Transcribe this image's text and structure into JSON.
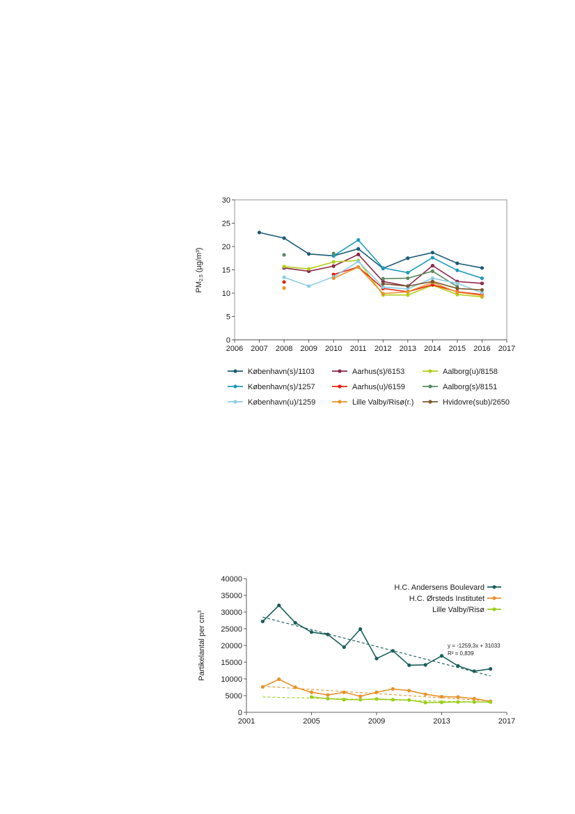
{
  "chart_data": [
    {
      "type": "line",
      "title": "",
      "xlabel": "",
      "ylabel": "PM",
      "ylabel_sub": "2.5",
      "ylabel_unit": "(µg/m³)",
      "xlim": [
        2006,
        2017
      ],
      "ylim": [
        0,
        30
      ],
      "xticks": [
        "2006",
        "2007",
        "2008",
        "2009",
        "2010",
        "2011",
        "2012",
        "2013",
        "2014",
        "2015",
        "2016",
        "2017"
      ],
      "yticks": [
        "0",
        "5",
        "10",
        "15",
        "20",
        "25",
        "30"
      ],
      "grid": false,
      "legend_position": "bottom",
      "series": [
        {
          "name": "København(s)/1103",
          "color": "#1a5a78",
          "points": [
            [
              2007,
              23.0
            ],
            [
              2008,
              21.8
            ],
            [
              2009,
              18.4
            ],
            [
              2010,
              18.0
            ],
            [
              2011,
              19.5
            ],
            [
              2012,
              15.3
            ],
            [
              2013,
              17.5
            ],
            [
              2014,
              18.7
            ],
            [
              2015,
              16.4
            ],
            [
              2016,
              15.4
            ]
          ]
        },
        {
          "name": "Aarhus(s)/6153",
          "color": "#8c2646",
          "points": [
            [
              2008,
              15.4
            ],
            [
              2009,
              14.7
            ],
            [
              2010,
              15.8
            ],
            [
              2011,
              18.3
            ],
            [
              2012,
              12.5
            ],
            [
              2013,
              11.5
            ],
            [
              2014,
              15.9
            ],
            [
              2015,
              12.5
            ],
            [
              2016,
              12.1
            ]
          ]
        },
        {
          "name": "Aalborg(u)/8158",
          "color": "#b5cc18",
          "points": [
            [
              2008,
              15.7
            ],
            [
              2009,
              15.2
            ],
            [
              2010,
              16.7
            ],
            [
              2011,
              17.0
            ],
            [
              2012,
              9.6
            ],
            [
              2013,
              9.6
            ],
            [
              2014,
              11.7
            ],
            [
              2015,
              9.7
            ],
            [
              2016,
              9.2
            ]
          ]
        },
        {
          "name": "København(s)/1257",
          "color": "#1e9ab8",
          "points": [
            [
              2010,
              18.0
            ],
            [
              2011,
              21.4
            ],
            [
              2012,
              15.4
            ],
            [
              2013,
              14.4
            ],
            [
              2014,
              17.6
            ],
            [
              2015,
              14.9
            ],
            [
              2016,
              13.2
            ]
          ]
        },
        {
          "name": "Aarhus(u)/6159",
          "color": "#e82010",
          "points": [
            [
              2008,
              12.4
            ],
            [
              2010,
              14.0
            ],
            [
              2011,
              15.6
            ],
            [
              2012,
              11.0
            ],
            [
              2013,
              10.3
            ],
            [
              2014,
              11.8
            ],
            [
              2015,
              10.3
            ],
            [
              2016,
              9.7
            ]
          ]
        },
        {
          "name": "Aalborg(s)/8151",
          "color": "#5a8a5e",
          "points": [
            [
              2008,
              18.2
            ],
            [
              2010,
              18.5
            ],
            [
              2012,
              13.1
            ],
            [
              2013,
              13.2
            ],
            [
              2014,
              14.7
            ],
            [
              2015,
              11.4
            ]
          ]
        },
        {
          "name": "København(u)/1259",
          "color": "#8ccce4",
          "points": [
            [
              2008,
              13.4
            ],
            [
              2009,
              11.5
            ],
            [
              2010,
              13.5
            ],
            [
              2011,
              16.8
            ],
            [
              2012,
              11.3
            ],
            [
              2013,
              10.9
            ],
            [
              2014,
              13.2
            ],
            [
              2015,
              12.1
            ],
            [
              2016,
              10.1
            ]
          ]
        },
        {
          "name": "Lille Valby/Risø(r.)",
          "color": "#e8922a",
          "points": [
            [
              2008,
              11.1
            ],
            [
              2010,
              13.2
            ],
            [
              2011,
              15.6
            ],
            [
              2012,
              9.9
            ],
            [
              2013,
              10.3
            ],
            [
              2014,
              12.3
            ],
            [
              2015,
              10.2
            ],
            [
              2016,
              9.5
            ]
          ]
        },
        {
          "name": "Hvidovre(sub)/2650",
          "color": "#7a5a2e",
          "points": [
            [
              2012,
              12.0
            ],
            [
              2013,
              11.5
            ],
            [
              2014,
              12.5
            ],
            [
              2015,
              11.0
            ],
            [
              2016,
              10.7
            ]
          ]
        }
      ]
    },
    {
      "type": "line",
      "title": "",
      "xlabel": "",
      "ylabel": "Partikelantal per cm",
      "ylabel_sup": "3",
      "xlim": [
        2001,
        2017
      ],
      "ylim": [
        0,
        40000
      ],
      "xticks": [
        "2001",
        "2005",
        "2009",
        "2013",
        "2017"
      ],
      "yticks": [
        "0",
        "5000",
        "10000",
        "15000",
        "20000",
        "25000",
        "30000",
        "35000",
        "40000"
      ],
      "grid": false,
      "legend_position": "top-right",
      "annotation": {
        "line1": "y = -1259,3x + 31033",
        "line2": "R² = 0,839"
      },
      "series": [
        {
          "name": "H.C. Andersens Boulevard",
          "color": "#1a5e5a",
          "points": [
            [
              2002,
              27200
            ],
            [
              2003,
              32000
            ],
            [
              2004,
              26800
            ],
            [
              2005,
              24000
            ],
            [
              2006,
              23300
            ],
            [
              2007,
              19500
            ],
            [
              2008,
              24900
            ],
            [
              2009,
              16100
            ],
            [
              2010,
              18400
            ],
            [
              2011,
              14100
            ],
            [
              2012,
              14200
            ],
            [
              2013,
              16900
            ],
            [
              2014,
              13900
            ],
            [
              2015,
              12300
            ],
            [
              2016,
              13000
            ]
          ],
          "trend": [
            [
              2002,
              28500
            ],
            [
              2016,
              10900
            ]
          ]
        },
        {
          "name": "H.C. Ørsteds Institutet",
          "color": "#e8922a",
          "points": [
            [
              2002,
              7600
            ],
            [
              2003,
              9900
            ],
            [
              2004,
              7500
            ],
            [
              2005,
              6000
            ],
            [
              2006,
              5200
            ],
            [
              2007,
              6000
            ],
            [
              2008,
              4800
            ],
            [
              2009,
              6000
            ],
            [
              2010,
              7000
            ],
            [
              2011,
              6500
            ],
            [
              2012,
              5400
            ],
            [
              2013,
              4700
            ],
            [
              2014,
              4600
            ],
            [
              2015,
              4100
            ],
            [
              2016,
              3300
            ]
          ],
          "trend": [
            [
              2002,
              7800
            ],
            [
              2016,
              3400
            ]
          ]
        },
        {
          "name": "Lille Valby/Risø",
          "color": "#9acd1c",
          "points": [
            [
              2005,
              4600
            ],
            [
              2006,
              4100
            ],
            [
              2007,
              3800
            ],
            [
              2008,
              3800
            ],
            [
              2009,
              4000
            ],
            [
              2010,
              3800
            ],
            [
              2011,
              3700
            ],
            [
              2012,
              2900
            ],
            [
              2013,
              3000
            ],
            [
              2014,
              3100
            ],
            [
              2015,
              3100
            ],
            [
              2016,
              3100
            ]
          ],
          "trend": [
            [
              2002,
              4600
            ],
            [
              2016,
              3000
            ]
          ]
        }
      ]
    }
  ]
}
